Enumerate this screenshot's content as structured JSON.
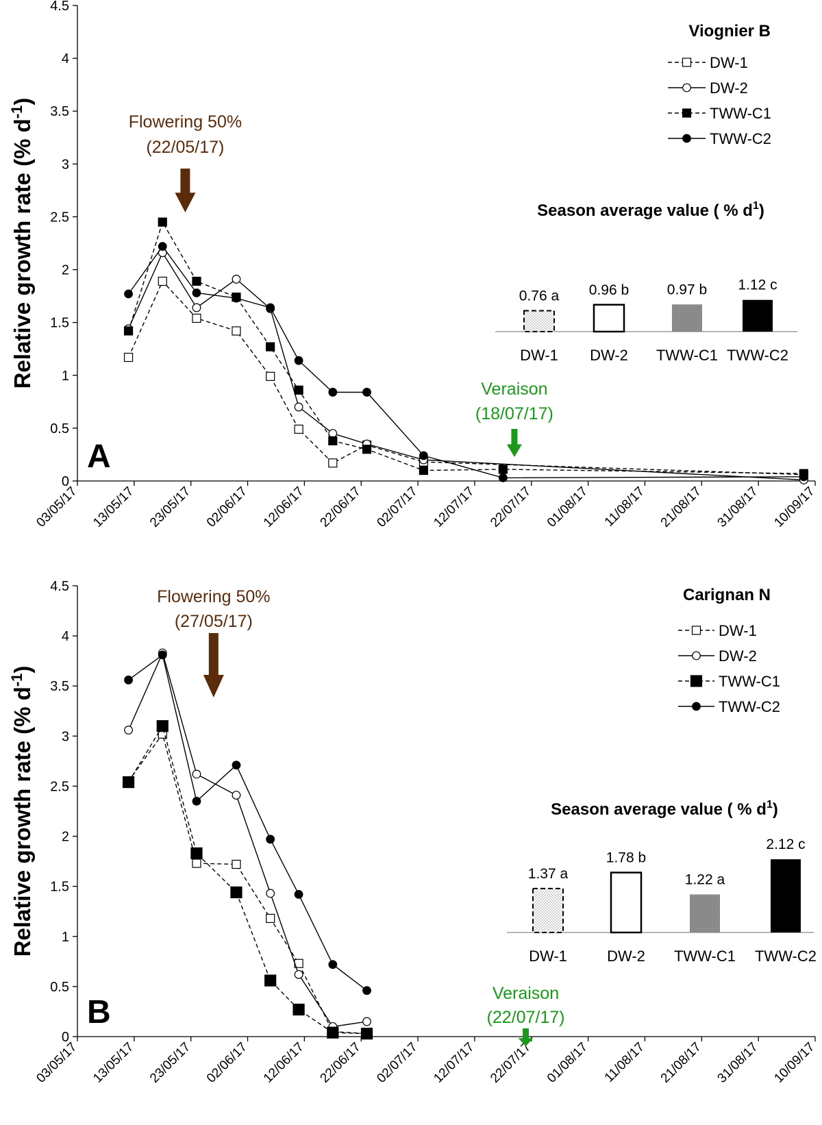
{
  "x_tick_labels": [
    "03/05/17",
    "13/05/17",
    "23/05/17",
    "02/06/17",
    "12/06/17",
    "22/06/17",
    "02/07/17",
    "12/07/17",
    "22/07/17",
    "01/08/17",
    "11/08/17",
    "21/08/17",
    "31/08/17",
    "10/09/17"
  ],
  "y_tick_labels": [
    "0",
    "0.5",
    "1",
    "1.5",
    "2",
    "2.5",
    "3",
    "3.5",
    "4",
    "4.5"
  ],
  "chart_data": [
    {
      "type": "line",
      "panel_label": "A",
      "title": "Viognier B",
      "xlabel": "",
      "ylabel": "Relative growth rate (% d-1)",
      "ylim": [
        0,
        4.5
      ],
      "xlim_days_from_03_05_17": [
        0,
        130
      ],
      "legend": [
        "DW-1",
        "DW-2",
        "TWW-C1",
        "TWW-C2"
      ],
      "series": [
        {
          "name": "DW-1",
          "style": "dashed-open-square",
          "x_days": [
            9,
            15,
            21,
            28,
            34,
            39,
            45,
            51,
            61,
            128
          ],
          "values": [
            1.17,
            1.89,
            1.54,
            1.42,
            0.99,
            0.49,
            0.17,
            0.34,
            0.18,
            0.06
          ]
        },
        {
          "name": "DW-2",
          "style": "solid-open-circle",
          "x_days": [
            9,
            15,
            21,
            28,
            34,
            39,
            45,
            51,
            61,
            128
          ],
          "values": [
            1.44,
            2.16,
            1.64,
            1.91,
            1.63,
            0.7,
            0.45,
            0.35,
            0.2,
            0.01
          ]
        },
        {
          "name": "TWW-C1",
          "style": "dashed-filled-square",
          "x_days": [
            9,
            15,
            21,
            28,
            34,
            39,
            45,
            51,
            61,
            75,
            128
          ],
          "values": [
            1.42,
            2.45,
            1.89,
            1.74,
            1.27,
            0.86,
            0.38,
            0.3,
            0.1,
            0.11,
            0.07
          ]
        },
        {
          "name": "TWW-C2",
          "style": "solid-filled-circle",
          "x_days": [
            9,
            15,
            21,
            28,
            34,
            39,
            45,
            51,
            61,
            75,
            128
          ],
          "values": [
            1.77,
            2.22,
            1.78,
            1.73,
            1.64,
            1.14,
            0.84,
            0.84,
            0.24,
            0.03,
            0.04
          ]
        }
      ],
      "annotations": [
        {
          "id": "flowering",
          "line1": "Flowering 50%",
          "line2": "(22/05/17)",
          "x_day": 19,
          "color": "#5b2c0b"
        },
        {
          "id": "veraison",
          "line1": "Veraison",
          "line2": "(18/07/17)",
          "x_day": 77,
          "color": "#1a9a1a"
        }
      ],
      "inset": {
        "type": "bar",
        "title": "Season average value ( % d1)",
        "categories": [
          "DW-1",
          "DW-2",
          "TWW-C1",
          "TWW-C2"
        ],
        "values": [
          0.76,
          0.96,
          0.97,
          1.12
        ],
        "value_labels": [
          "0.76 a",
          "0.96 b",
          "0.97 b",
          "1.12 c"
        ],
        "styles": [
          "dotted-dashed",
          "open",
          "grey",
          "black"
        ]
      }
    },
    {
      "type": "line",
      "panel_label": "B",
      "title": "Carignan N",
      "xlabel": "",
      "ylabel": "Relative growth rate (% d-1)",
      "ylim": [
        0,
        4.5
      ],
      "xlim_days_from_03_05_17": [
        0,
        130
      ],
      "legend": [
        "DW-1",
        "DW-2",
        "TWW-C1",
        "TWW-C2"
      ],
      "series": [
        {
          "name": "DW-1",
          "style": "dashed-open-square",
          "x_days": [
            9,
            15,
            21,
            28,
            34,
            39,
            45,
            51
          ],
          "values": [
            2.55,
            3.02,
            1.73,
            1.72,
            1.18,
            0.73,
            0.05,
            0.03
          ]
        },
        {
          "name": "DW-2",
          "style": "solid-open-circle",
          "x_days": [
            9,
            15,
            21,
            28,
            34,
            39,
            45,
            51
          ],
          "values": [
            3.06,
            3.83,
            2.62,
            2.41,
            1.43,
            0.62,
            0.1,
            0.15
          ]
        },
        {
          "name": "TWW-C1",
          "style": "dashed-filled-square",
          "x_days": [
            9,
            15,
            21,
            28,
            34,
            39,
            45,
            51
          ],
          "values": [
            2.54,
            3.1,
            1.83,
            1.44,
            0.56,
            0.27,
            0.04,
            0.03
          ]
        },
        {
          "name": "TWW-C2",
          "style": "solid-filled-circle",
          "x_days": [
            9,
            15,
            21,
            28,
            34,
            39,
            45,
            51
          ],
          "values": [
            3.56,
            3.81,
            2.35,
            2.71,
            1.97,
            1.42,
            0.72,
            0.46
          ]
        }
      ],
      "annotations": [
        {
          "id": "flowering",
          "line1": "Flowering 50%",
          "line2": "(27/05/17)",
          "x_day": 24,
          "color": "#5b2c0b"
        },
        {
          "id": "veraison",
          "line1": "Veraison",
          "line2": "(22/07/17)",
          "x_day": 79,
          "color": "#1a9a1a"
        }
      ],
      "inset": {
        "type": "bar",
        "title": "Season average value ( % d1)",
        "categories": [
          "DW-1",
          "DW-2",
          "TWW-C1",
          "TWW-C2"
        ],
        "values": [
          1.37,
          1.78,
          1.22,
          2.12
        ],
        "value_labels": [
          "1.37 a",
          "1.78 b",
          "1.22 a",
          "2.12 c"
        ],
        "styles": [
          "dotted-dashed",
          "open",
          "grey",
          "black"
        ]
      }
    }
  ]
}
